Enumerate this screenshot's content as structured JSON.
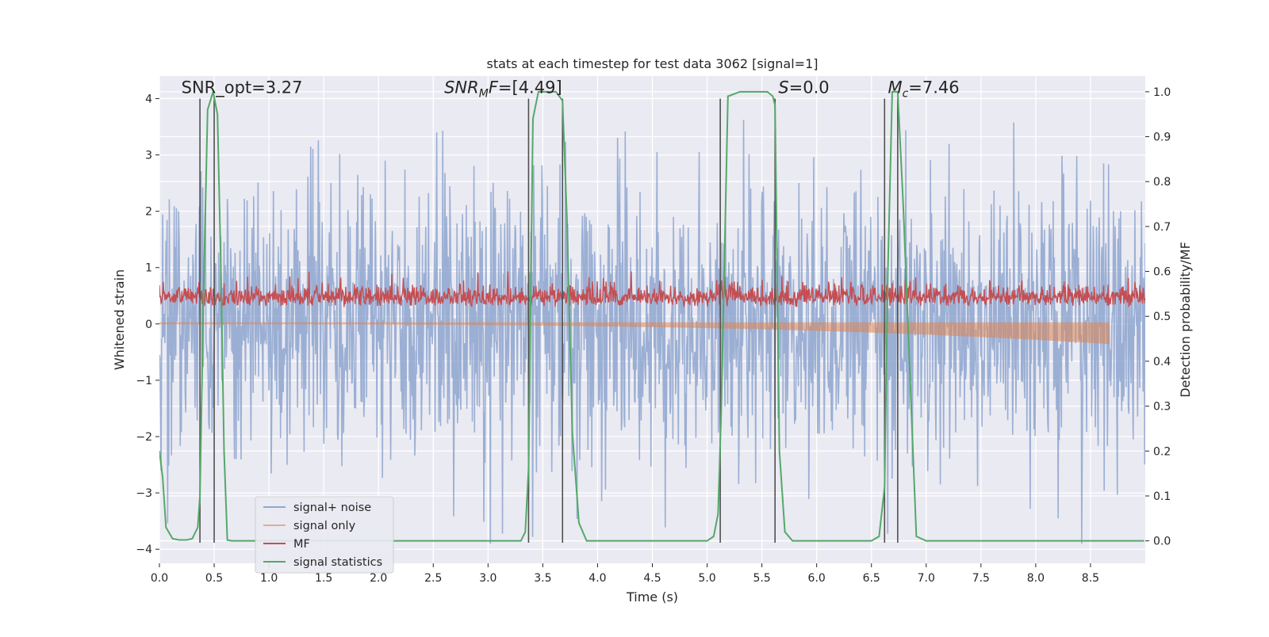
{
  "title": "stats at each timestep for test data 3062 [signal=1]",
  "chart_data": {
    "type": "line",
    "title": "stats at each timestep for test data 3062 [signal=1]",
    "xlabel": "Time (s)",
    "ylabel": "Whitened strain",
    "ylabel_right": "Detection probability/MF",
    "xlim": [
      0,
      9
    ],
    "ylim": [
      -4.25,
      4.4
    ],
    "ylim_right": [
      -0.05,
      1.035
    ],
    "x_ticks": [
      "0.0",
      "0.5",
      "1.0",
      "1.5",
      "2.0",
      "2.5",
      "3.0",
      "3.5",
      "4.0",
      "4.5",
      "5.0",
      "5.5",
      "6.0",
      "6.5",
      "7.0",
      "7.5",
      "8.0",
      "8.5"
    ],
    "y_ticks": [
      "−4",
      "−3",
      "−2",
      "−1",
      "0",
      "1",
      "2",
      "3",
      "4"
    ],
    "y_ticks_right": [
      "0.0",
      "0.1",
      "0.2",
      "0.3",
      "0.4",
      "0.5",
      "0.6",
      "0.7",
      "0.8",
      "0.9",
      "1.0"
    ],
    "grid": true,
    "legend_position": "lower-left",
    "colors": {
      "plot_background": "#eaeaf2",
      "grid": "#ffffff",
      "signal_noise": "#8da4cf",
      "signal_only": "#dd8452",
      "mf": "#c44e52",
      "signal_statistics": "#55a868",
      "vlines": "#505050"
    },
    "annotations": [
      {
        "x": 0.2,
        "y": 4.1,
        "text": "SNR_opt=3.27"
      },
      {
        "x": 2.6,
        "y": 4.1,
        "text": "SNR_MF=[4.49]"
      },
      {
        "x": 5.65,
        "y": 4.1,
        "text": "S=0.0"
      },
      {
        "x": 6.65,
        "y": 4.1,
        "text": "M_c=7.46"
      }
    ],
    "vertical_lines": [
      0.37,
      0.5,
      3.37,
      3.68,
      5.12,
      5.62,
      6.62,
      6.74
    ],
    "series": [
      {
        "name": "signal+ noise",
        "axis": "left",
        "description_stats": {
          "n_points": 1800,
          "y_range": [
            -3.9,
            3.9
          ],
          "typical_abs": 1.6
        }
      },
      {
        "name": "signal only",
        "axis": "left",
        "x_range": [
          0,
          8.67
        ],
        "y_envelope_end": [
          -0.35,
          0.0
        ]
      },
      {
        "name": "MF",
        "axis": "right",
        "n_points": 1800,
        "y_range": [
          0.5,
          0.6
        ],
        "typical_center": 0.53
      },
      {
        "name": "signal statistics",
        "axis": "right",
        "x": [
          0.0,
          0.03,
          0.06,
          0.12,
          0.18,
          0.25,
          0.3,
          0.35,
          0.37,
          0.4,
          0.44,
          0.49,
          0.53,
          0.56,
          0.59,
          0.62,
          0.66,
          0.7,
          0.8,
          1.5,
          2.5,
          3.3,
          3.34,
          3.37,
          3.41,
          3.46,
          3.55,
          3.62,
          3.68,
          3.72,
          3.77,
          3.83,
          3.9,
          4.3,
          5.0,
          5.06,
          5.1,
          5.13,
          5.19,
          5.3,
          5.55,
          5.6,
          5.62,
          5.66,
          5.71,
          5.78,
          5.9,
          6.5,
          6.57,
          6.62,
          6.65,
          6.69,
          6.74,
          6.79,
          6.85,
          6.91,
          7.0,
          8.99
        ],
        "values": [
          0.2,
          0.14,
          0.03,
          0.005,
          0.002,
          0.002,
          0.005,
          0.03,
          0.1,
          0.52,
          0.96,
          1.0,
          0.95,
          0.62,
          0.2,
          0.002,
          0.0,
          0.0,
          0.0,
          0.0,
          0.0,
          0.0,
          0.02,
          0.16,
          0.94,
          1.0,
          1.0,
          1.0,
          0.98,
          0.72,
          0.24,
          0.04,
          0.0,
          0.0,
          0.0,
          0.01,
          0.06,
          0.3,
          0.99,
          1.0,
          1.0,
          0.99,
          0.97,
          0.2,
          0.02,
          0.0,
          0.0,
          0.0,
          0.01,
          0.12,
          0.6,
          1.0,
          1.0,
          0.75,
          0.38,
          0.01,
          0.0,
          0.0
        ]
      }
    ]
  },
  "legend": {
    "items": [
      "signal+ noise",
      "signal only",
      "MF",
      "signal statistics"
    ]
  }
}
